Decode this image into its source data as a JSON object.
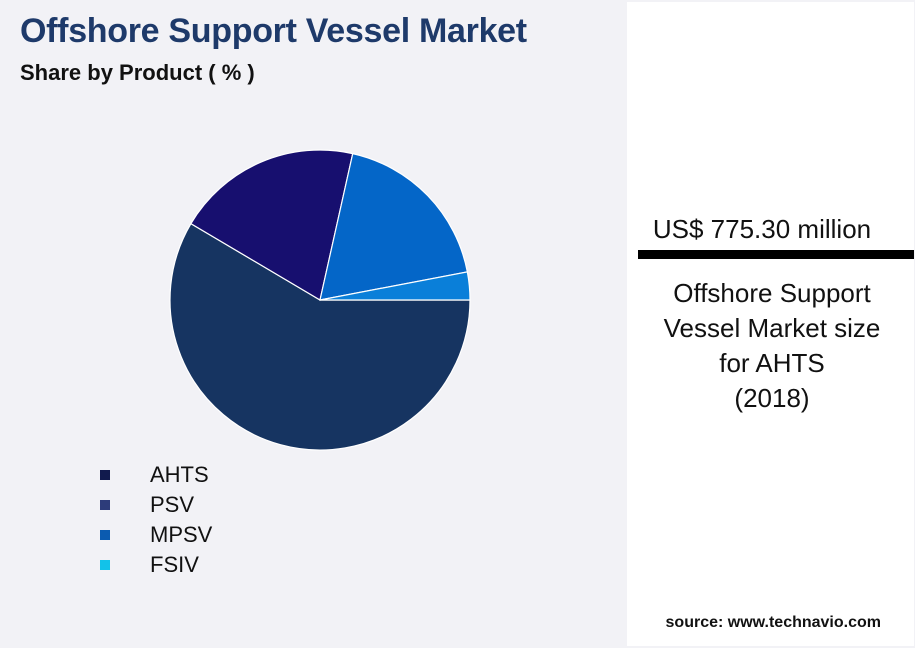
{
  "header": {
    "title": "Offshore Support Vessel Market",
    "subtitle": "Share by Product ( % )"
  },
  "chart_data": {
    "type": "pie",
    "categories": [
      "AHTS",
      "PSV",
      "MPSV",
      "FSIV"
    ],
    "values": [
      58.5,
      20,
      18.5,
      3
    ],
    "colors": [
      "#163461",
      "#170f6f",
      "#0466c8",
      "#0a7fd9"
    ],
    "legend_colors": [
      "#111a4d",
      "#2d3c7a",
      "#0b5bb0",
      "#12c2e9"
    ],
    "legend_position": "bottom-left"
  },
  "highlight": {
    "value": "US$ 775.30 million",
    "description_lines": [
      "Offshore Support",
      "Vessel Market size",
      "for AHTS",
      "(2018)"
    ]
  },
  "footer": {
    "source": "source: www.technavio.com"
  }
}
